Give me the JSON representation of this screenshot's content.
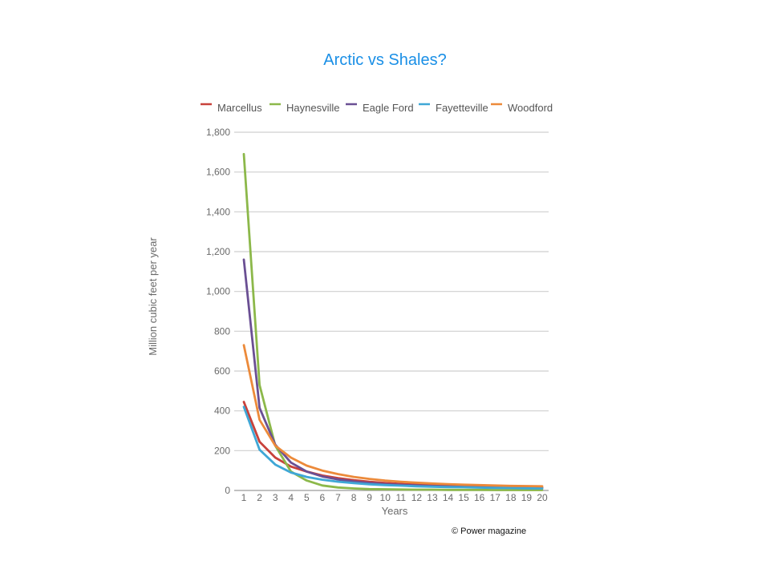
{
  "slide": {
    "title": "Arctic vs Shales?",
    "credit": "© Power magazine"
  },
  "chart_data": {
    "type": "line",
    "title": "",
    "xlabel": "Years",
    "ylabel": "Million cubic feet per year",
    "x": [
      1,
      2,
      3,
      4,
      5,
      6,
      7,
      8,
      9,
      10,
      11,
      12,
      13,
      14,
      15,
      16,
      17,
      18,
      19,
      20
    ],
    "xlim": [
      1,
      20
    ],
    "ylim": [
      0,
      1800
    ],
    "yticks": [
      0,
      200,
      400,
      600,
      800,
      1000,
      1200,
      1400,
      1600,
      1800
    ],
    "ytick_labels": [
      "0",
      "200",
      "400",
      "600",
      "800",
      "1,000",
      "1,200",
      "1,400",
      "1,600",
      "1,800"
    ],
    "xtick_labels": [
      "1",
      "2",
      "3",
      "4",
      "5",
      "6",
      "7",
      "8",
      "9",
      "10",
      "11",
      "12",
      "13",
      "14",
      "15",
      "16",
      "17",
      "18",
      "19",
      "20"
    ],
    "grid": true,
    "legend_position": "top",
    "series": [
      {
        "name": "Marcellus",
        "color": "#c8413b",
        "values": [
          445,
          245,
          165,
          120,
          95,
          75,
          62,
          52,
          44,
          38,
          33,
          29,
          26,
          23,
          21,
          19,
          17,
          16,
          15,
          14
        ]
      },
      {
        "name": "Haynesville",
        "color": "#8cb84a",
        "values": [
          1690,
          530,
          225,
          95,
          50,
          25,
          15,
          10,
          7,
          6,
          5,
          4,
          4,
          3,
          3,
          3,
          2,
          2,
          2,
          2
        ]
      },
      {
        "name": "Eagle Ford",
        "color": "#6a4f93",
        "values": [
          1160,
          415,
          230,
          140,
          95,
          70,
          55,
          45,
          38,
          32,
          28,
          25,
          22,
          20,
          18,
          16,
          15,
          14,
          13,
          12
        ]
      },
      {
        "name": "Fayetteville",
        "color": "#3fa7d6",
        "values": [
          420,
          205,
          130,
          90,
          68,
          54,
          44,
          37,
          31,
          27,
          24,
          21,
          19,
          17,
          16,
          14,
          13,
          12,
          11,
          10
        ]
      },
      {
        "name": "Woodford",
        "color": "#ec8a3a",
        "values": [
          730,
          355,
          225,
          165,
          125,
          100,
          82,
          68,
          58,
          50,
          44,
          39,
          35,
          32,
          29,
          27,
          25,
          23,
          22,
          21
        ]
      }
    ]
  }
}
